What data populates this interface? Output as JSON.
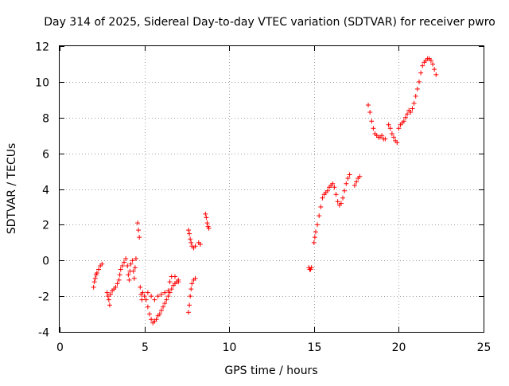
{
  "chart_data": {
    "type": "scatter",
    "title": "Day 314 of 2025, Sidereal Day-to-day VTEC variation (SDTVAR) for receiver pwro",
    "xlabel": "GPS time / hours",
    "ylabel": "SDTVAR / TECUs",
    "xlim": [
      0,
      25
    ],
    "ylim": [
      -4,
      12
    ],
    "xticks": [
      "0",
      "5",
      "10",
      "15",
      "20",
      "25"
    ],
    "yticks": [
      "-4",
      "-2",
      "0",
      "2",
      "4",
      "6",
      "8",
      "10",
      "12"
    ],
    "grid": true,
    "marker": "+",
    "color": "#ff0000",
    "series": [
      {
        "name": "SDTVAR",
        "points": [
          [
            2.0,
            -1.5
          ],
          [
            2.05,
            -1.2
          ],
          [
            2.1,
            -1.0
          ],
          [
            2.15,
            -0.8
          ],
          [
            2.2,
            -0.7
          ],
          [
            2.3,
            -0.5
          ],
          [
            2.4,
            -0.3
          ],
          [
            2.5,
            -0.2
          ],
          [
            2.8,
            -1.8
          ],
          [
            2.85,
            -2.0
          ],
          [
            2.9,
            -2.2
          ],
          [
            2.95,
            -2.5
          ],
          [
            3.0,
            -1.9
          ],
          [
            3.1,
            -1.7
          ],
          [
            3.2,
            -1.6
          ],
          [
            3.3,
            -1.5
          ],
          [
            3.4,
            -1.3
          ],
          [
            3.5,
            -1.1
          ],
          [
            3.55,
            -0.8
          ],
          [
            3.6,
            -0.5
          ],
          [
            3.7,
            -0.3
          ],
          [
            3.8,
            -0.1
          ],
          [
            3.9,
            0.1
          ],
          [
            4.0,
            -0.3
          ],
          [
            4.05,
            -0.8
          ],
          [
            4.1,
            -1.1
          ],
          [
            4.15,
            -0.6
          ],
          [
            4.2,
            -0.2
          ],
          [
            4.3,
            0.0
          ],
          [
            4.35,
            -0.6
          ],
          [
            4.4,
            -1.0
          ],
          [
            4.45,
            -0.4
          ],
          [
            4.5,
            0.1
          ],
          [
            4.6,
            2.1
          ],
          [
            4.65,
            1.7
          ],
          [
            4.7,
            1.3
          ],
          [
            4.75,
            -1.5
          ],
          [
            4.8,
            -1.9
          ],
          [
            4.85,
            -2.2
          ],
          [
            4.9,
            -1.8
          ],
          [
            5.0,
            -2.0
          ],
          [
            5.1,
            -2.2
          ],
          [
            5.2,
            -2.6
          ],
          [
            5.3,
            -3.0
          ],
          [
            5.4,
            -3.3
          ],
          [
            5.5,
            -3.5
          ],
          [
            5.6,
            -3.4
          ],
          [
            5.7,
            -3.3
          ],
          [
            5.8,
            -3.1
          ],
          [
            5.9,
            -3.0
          ],
          [
            6.0,
            -2.8
          ],
          [
            6.1,
            -2.6
          ],
          [
            6.2,
            -2.4
          ],
          [
            6.3,
            -2.2
          ],
          [
            6.4,
            -2.0
          ],
          [
            6.5,
            -1.8
          ],
          [
            6.6,
            -1.6
          ],
          [
            6.7,
            -1.4
          ],
          [
            6.8,
            -1.3
          ],
          [
            6.9,
            -1.2
          ],
          [
            7.0,
            -1.1
          ],
          [
            5.2,
            -1.8
          ],
          [
            5.4,
            -2.0
          ],
          [
            5.6,
            -2.2
          ],
          [
            5.8,
            -2.0
          ],
          [
            6.0,
            -1.9
          ],
          [
            6.2,
            -1.8
          ],
          [
            6.4,
            -1.7
          ],
          [
            6.5,
            -1.2
          ],
          [
            6.6,
            -0.9
          ],
          [
            6.8,
            -0.9
          ],
          [
            7.0,
            -1.2
          ],
          [
            7.6,
            -2.9
          ],
          [
            7.65,
            -2.5
          ],
          [
            7.7,
            -2.0
          ],
          [
            7.75,
            -1.6
          ],
          [
            7.8,
            -1.3
          ],
          [
            7.9,
            -1.1
          ],
          [
            8.0,
            -1.0
          ],
          [
            7.6,
            1.7
          ],
          [
            7.65,
            1.5
          ],
          [
            7.7,
            1.2
          ],
          [
            7.75,
            1.0
          ],
          [
            7.8,
            0.8
          ],
          [
            7.9,
            0.7
          ],
          [
            8.0,
            0.8
          ],
          [
            8.2,
            1.0
          ],
          [
            8.3,
            0.9
          ],
          [
            8.6,
            2.6
          ],
          [
            8.65,
            2.4
          ],
          [
            8.7,
            2.1
          ],
          [
            8.75,
            1.9
          ],
          [
            8.8,
            1.8
          ],
          [
            14.7,
            -0.4
          ],
          [
            14.75,
            -0.5
          ],
          [
            14.8,
            -0.5
          ],
          [
            14.85,
            -0.4
          ],
          [
            15.0,
            1.0
          ],
          [
            15.05,
            1.3
          ],
          [
            15.1,
            1.6
          ],
          [
            15.2,
            2.0
          ],
          [
            15.3,
            2.5
          ],
          [
            15.4,
            3.0
          ],
          [
            15.5,
            3.5
          ],
          [
            15.6,
            3.7
          ],
          [
            15.7,
            3.8
          ],
          [
            15.8,
            3.9
          ],
          [
            15.9,
            4.1
          ],
          [
            16.0,
            4.2
          ],
          [
            16.1,
            4.3
          ],
          [
            16.2,
            4.1
          ],
          [
            16.3,
            3.7
          ],
          [
            16.4,
            3.3
          ],
          [
            16.5,
            3.1
          ],
          [
            16.6,
            3.2
          ],
          [
            16.7,
            3.5
          ],
          [
            16.8,
            3.9
          ],
          [
            16.9,
            4.3
          ],
          [
            17.0,
            4.6
          ],
          [
            17.1,
            4.8
          ],
          [
            17.4,
            4.2
          ],
          [
            17.5,
            4.4
          ],
          [
            17.6,
            4.6
          ],
          [
            17.7,
            4.7
          ],
          [
            18.2,
            8.7
          ],
          [
            18.3,
            8.3
          ],
          [
            18.4,
            7.8
          ],
          [
            18.5,
            7.4
          ],
          [
            18.6,
            7.1
          ],
          [
            18.7,
            7.0
          ],
          [
            18.8,
            6.9
          ],
          [
            18.9,
            6.9
          ],
          [
            19.0,
            7.0
          ],
          [
            19.1,
            6.8
          ],
          [
            19.2,
            6.8
          ],
          [
            19.4,
            7.6
          ],
          [
            19.5,
            7.4
          ],
          [
            19.6,
            7.1
          ],
          [
            19.7,
            6.9
          ],
          [
            19.8,
            6.7
          ],
          [
            19.9,
            6.6
          ],
          [
            20.0,
            7.4
          ],
          [
            20.1,
            7.6
          ],
          [
            20.2,
            7.7
          ],
          [
            20.3,
            7.8
          ],
          [
            20.4,
            8.0
          ],
          [
            20.5,
            8.2
          ],
          [
            20.6,
            8.4
          ],
          [
            20.7,
            8.3
          ],
          [
            20.8,
            8.5
          ],
          [
            20.9,
            8.8
          ],
          [
            21.0,
            9.2
          ],
          [
            21.1,
            9.6
          ],
          [
            21.2,
            10.0
          ],
          [
            21.3,
            10.5
          ],
          [
            21.4,
            10.9
          ],
          [
            21.5,
            11.1
          ],
          [
            21.6,
            11.2
          ],
          [
            21.7,
            11.3
          ],
          [
            21.8,
            11.3
          ],
          [
            21.9,
            11.2
          ],
          [
            22.0,
            11.0
          ],
          [
            22.1,
            10.7
          ],
          [
            22.2,
            10.4
          ]
        ]
      }
    ]
  }
}
